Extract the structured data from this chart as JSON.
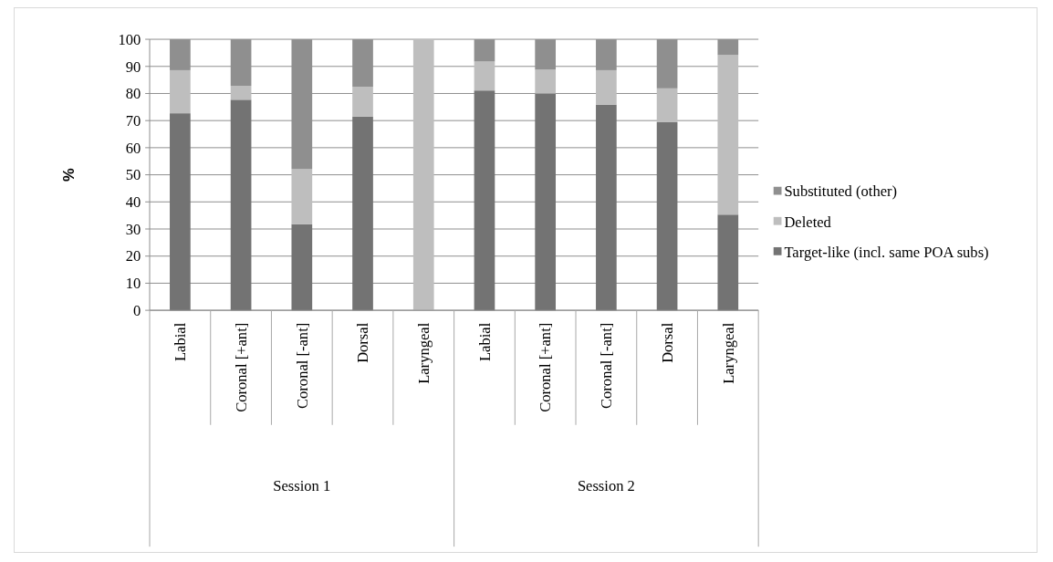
{
  "chart_data": {
    "type": "bar",
    "stacked": true,
    "ylabel": "%",
    "categories": [
      "Labial",
      "Coronal [+ant]",
      "Coronal [-ant]",
      "Dorsal",
      "Laryngeal",
      "Labial",
      "Coronal [+ant]",
      "Coronal [-ant]",
      "Dorsal",
      "Laryngeal"
    ],
    "annotations": [
      "Session 1",
      "Session 2"
    ],
    "series": [
      {
        "name": "Target-like (incl. same POA subs)",
        "color": "#737373",
        "values": [
          72.7,
          77.7,
          31.8,
          71.5,
          0,
          81.1,
          80.0,
          75.9,
          69.4,
          35.3
        ]
      },
      {
        "name": "Deleted",
        "color": "#bebebe",
        "values": [
          15.9,
          5.1,
          20.3,
          11.0,
          100,
          10.7,
          8.8,
          12.7,
          12.5,
          58.9
        ]
      },
      {
        "name": "Substituted (other)",
        "color": "#8f8f8f",
        "values": [
          11.4,
          17.2,
          47.9,
          17.5,
          0,
          8.2,
          11.2,
          11.4,
          18.1,
          5.8
        ]
      }
    ],
    "ylim": [
      0,
      100
    ],
    "yticks": [
      0,
      10,
      20,
      30,
      40,
      50,
      60,
      70,
      80,
      90,
      100
    ],
    "grid": "y",
    "legend": "right"
  }
}
